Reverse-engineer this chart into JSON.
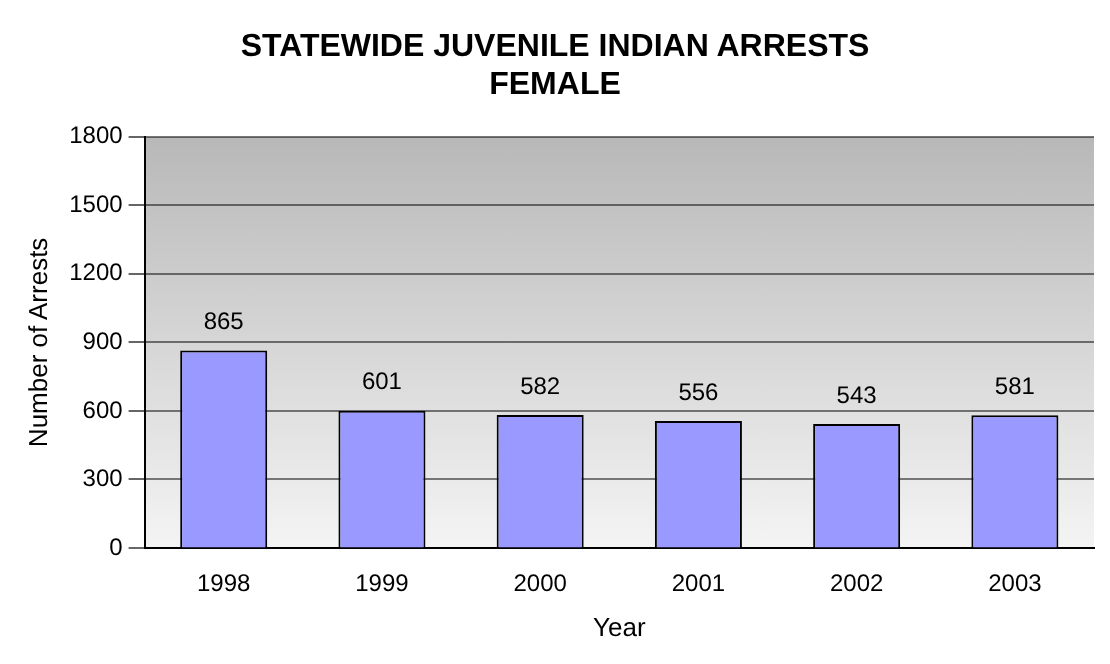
{
  "chart_data": {
    "type": "bar",
    "title": "STATEWIDE JUVENILE INDIAN ARRESTS\nFEMALE",
    "xlabel": "Year",
    "ylabel": "Number of Arrests",
    "categories": [
      "1998",
      "1999",
      "2000",
      "2001",
      "2002",
      "2003"
    ],
    "values": [
      865,
      601,
      582,
      556,
      543,
      581
    ],
    "color": "#9999ff",
    "ylim": [
      0,
      1800
    ],
    "yticks": [
      0,
      300,
      600,
      900,
      1200,
      1500,
      1800
    ],
    "grid": "y",
    "data_labels": true,
    "legend": false
  }
}
